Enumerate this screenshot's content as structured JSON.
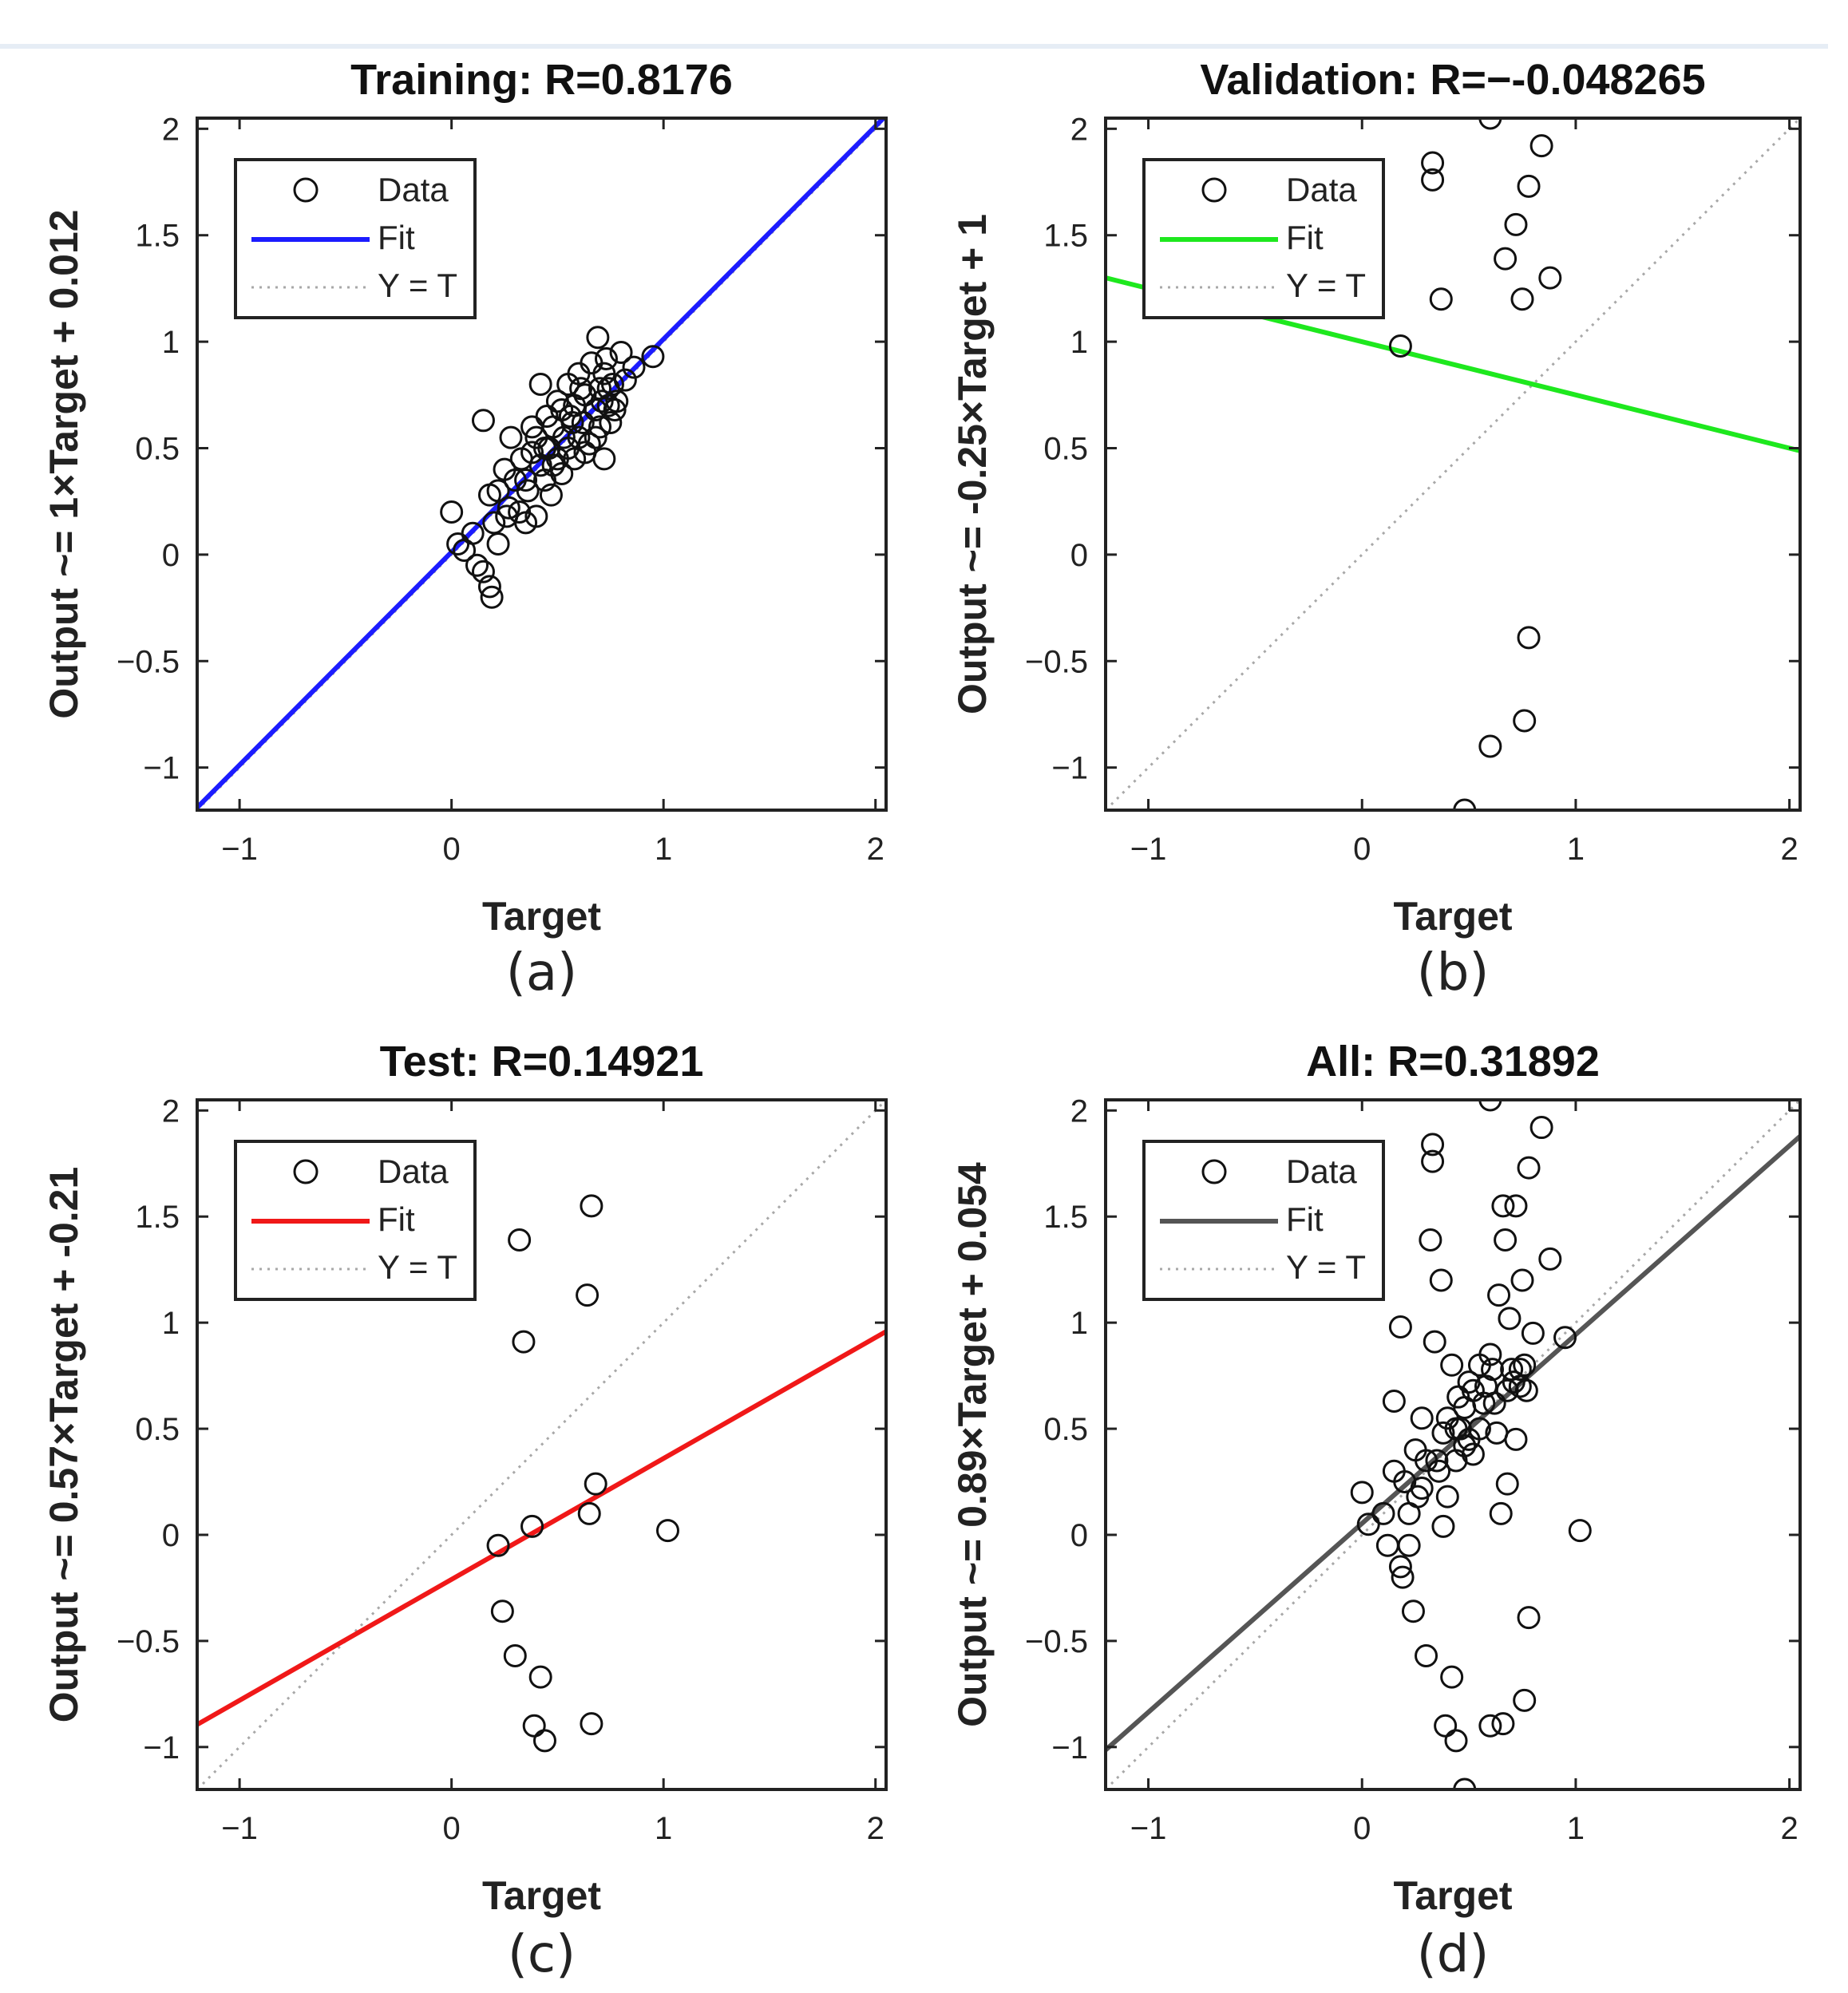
{
  "chart_data": [
    {
      "type": "scatter",
      "title": "Training: R=0.8176",
      "xlabel": "Target",
      "ylabel": "Output ~= 1×Target + 0.012",
      "xlim": [
        -1.2,
        2.05
      ],
      "ylim": [
        -1.2,
        2.05
      ],
      "xticks": [
        -1,
        0,
        1,
        2
      ],
      "yticks": [
        -1,
        -0.5,
        0,
        0.5,
        1,
        1.5,
        2
      ],
      "ytick_labels": [
        "−1",
        "−0.5",
        "0",
        "0.5",
        "1",
        "1.5",
        "2"
      ],
      "xtick_labels": [
        "−1",
        "0",
        "1",
        "2"
      ],
      "fit": {
        "slope": 1,
        "intercept": 0.012,
        "color": "#1c1cff"
      },
      "legend": {
        "data": "Data",
        "fit": "Fit",
        "yt": "Y = T",
        "position": "top-left"
      },
      "caption": "(a)",
      "points": [
        [
          0.0,
          0.2
        ],
        [
          0.03,
          0.05
        ],
        [
          0.06,
          0.02
        ],
        [
          0.1,
          0.1
        ],
        [
          0.12,
          -0.05
        ],
        [
          0.15,
          -0.08
        ],
        [
          0.18,
          -0.15
        ],
        [
          0.19,
          -0.2
        ],
        [
          0.15,
          0.63
        ],
        [
          0.18,
          0.28
        ],
        [
          0.2,
          0.15
        ],
        [
          0.22,
          0.3
        ],
        [
          0.25,
          0.4
        ],
        [
          0.27,
          0.22
        ],
        [
          0.28,
          0.55
        ],
        [
          0.3,
          0.35
        ],
        [
          0.32,
          0.2
        ],
        [
          0.33,
          0.45
        ],
        [
          0.35,
          0.15
        ],
        [
          0.36,
          0.3
        ],
        [
          0.38,
          0.48
        ],
        [
          0.4,
          0.18
        ],
        [
          0.4,
          0.55
        ],
        [
          0.42,
          0.42
        ],
        [
          0.42,
          0.8
        ],
        [
          0.44,
          0.35
        ],
        [
          0.45,
          0.65
        ],
        [
          0.46,
          0.5
        ],
        [
          0.47,
          0.28
        ],
        [
          0.48,
          0.6
        ],
        [
          0.5,
          0.45
        ],
        [
          0.5,
          0.72
        ],
        [
          0.52,
          0.38
        ],
        [
          0.53,
          0.55
        ],
        [
          0.55,
          0.5
        ],
        [
          0.55,
          0.8
        ],
        [
          0.56,
          0.65
        ],
        [
          0.58,
          0.45
        ],
        [
          0.58,
          0.7
        ],
        [
          0.6,
          0.55
        ],
        [
          0.6,
          0.85
        ],
        [
          0.62,
          0.62
        ],
        [
          0.63,
          0.75
        ],
        [
          0.65,
          0.52
        ],
        [
          0.66,
          0.9
        ],
        [
          0.68,
          0.68
        ],
        [
          0.69,
          1.02
        ],
        [
          0.7,
          0.6
        ],
        [
          0.7,
          0.78
        ],
        [
          0.72,
          0.45
        ],
        [
          0.72,
          0.85
        ],
        [
          0.74,
          0.7
        ],
        [
          0.75,
          0.62
        ],
        [
          0.76,
          0.8
        ],
        [
          0.78,
          0.72
        ],
        [
          0.8,
          0.95
        ],
        [
          0.82,
          0.82
        ],
        [
          0.86,
          0.88
        ],
        [
          0.95,
          0.93
        ],
        [
          0.68,
          0.55
        ],
        [
          0.71,
          0.72
        ],
        [
          0.73,
          0.92
        ],
        [
          0.63,
          0.48
        ],
        [
          0.57,
          0.62
        ],
        [
          0.48,
          0.42
        ],
        [
          0.38,
          0.6
        ],
        [
          0.26,
          0.18
        ],
        [
          0.22,
          0.05
        ],
        [
          0.35,
          0.35
        ],
        [
          0.44,
          0.5
        ],
        [
          0.52,
          0.68
        ],
        [
          0.61,
          0.78
        ],
        [
          0.74,
          0.78
        ],
        [
          0.77,
          0.68
        ]
      ]
    },
    {
      "type": "scatter",
      "title": "Validation: R=−-0.048265",
      "xlabel": "Target",
      "ylabel": "Output ~= -0.25×Target + 1",
      "xlim": [
        -1.2,
        2.05
      ],
      "ylim": [
        -1.2,
        2.05
      ],
      "xticks": [
        -1,
        0,
        1,
        2
      ],
      "yticks": [
        -1,
        -0.5,
        0,
        0.5,
        1,
        1.5,
        2
      ],
      "ytick_labels": [
        "−1",
        "−0.5",
        "0",
        "0.5",
        "1",
        "1.5",
        "2"
      ],
      "xtick_labels": [
        "−1",
        "0",
        "1",
        "2"
      ],
      "fit": {
        "slope": -0.25,
        "intercept": 1.0,
        "color": "#1ee81e"
      },
      "legend": {
        "data": "Data",
        "fit": "Fit",
        "yt": "Y = T",
        "position": "top-left"
      },
      "caption": "(b)",
      "points": [
        [
          0.18,
          0.98
        ],
        [
          0.33,
          1.84
        ],
        [
          0.33,
          1.76
        ],
        [
          0.37,
          1.2
        ],
        [
          0.6,
          2.05
        ],
        [
          0.67,
          1.39
        ],
        [
          0.72,
          1.55
        ],
        [
          0.75,
          1.2
        ],
        [
          0.78,
          1.73
        ],
        [
          0.84,
          1.92
        ],
        [
          0.88,
          1.3
        ],
        [
          0.78,
          -0.39
        ],
        [
          0.76,
          -0.78
        ],
        [
          0.6,
          -0.9
        ],
        [
          0.48,
          -1.2
        ]
      ]
    },
    {
      "type": "scatter",
      "title": "Test: R=0.14921",
      "xlabel": "Target",
      "ylabel": "Output ~= 0.57×Target + -0.21",
      "xlim": [
        -1.2,
        2.05
      ],
      "ylim": [
        -1.2,
        2.05
      ],
      "xticks": [
        -1,
        0,
        1,
        2
      ],
      "yticks": [
        -1,
        -0.5,
        0,
        0.5,
        1,
        1.5,
        2
      ],
      "ytick_labels": [
        "−1",
        "−0.5",
        "0",
        "0.5",
        "1",
        "1.5",
        "2"
      ],
      "xtick_labels": [
        "−1",
        "0",
        "1",
        "2"
      ],
      "fit": {
        "slope": 0.57,
        "intercept": -0.21,
        "color": "#f01818"
      },
      "legend": {
        "data": "Data",
        "fit": "Fit",
        "yt": "Y = T",
        "position": "top-left"
      },
      "caption": "(c)",
      "points": [
        [
          0.32,
          1.39
        ],
        [
          0.34,
          0.91
        ],
        [
          0.64,
          1.13
        ],
        [
          0.66,
          1.55
        ],
        [
          0.68,
          0.24
        ],
        [
          0.65,
          0.1
        ],
        [
          0.38,
          0.04
        ],
        [
          0.22,
          -0.05
        ],
        [
          0.24,
          -0.36
        ],
        [
          0.3,
          -0.57
        ],
        [
          0.42,
          -0.67
        ],
        [
          0.39,
          -0.9
        ],
        [
          0.44,
          -0.97
        ],
        [
          0.66,
          -0.89
        ],
        [
          1.02,
          0.02
        ]
      ]
    },
    {
      "type": "scatter",
      "title": "All: R=0.31892",
      "xlabel": "Target",
      "ylabel": "Output ~= 0.89×Target + 0.054",
      "xlim": [
        -1.2,
        2.05
      ],
      "ylim": [
        -1.2,
        2.05
      ],
      "xticks": [
        -1,
        0,
        1,
        2
      ],
      "yticks": [
        -1,
        -0.5,
        0,
        0.5,
        1,
        1.5,
        2
      ],
      "ytick_labels": [
        "−1",
        "−0.5",
        "0",
        "0.5",
        "1",
        "1.5",
        "2"
      ],
      "xtick_labels": [
        "−1",
        "0",
        "1",
        "2"
      ],
      "fit": {
        "slope": 0.89,
        "intercept": 0.054,
        "color": "#555555"
      },
      "legend": {
        "data": "Data",
        "fit": "Fit",
        "yt": "Y = T",
        "position": "top-left"
      },
      "caption": "(d)",
      "points": [
        [
          0.0,
          0.2
        ],
        [
          0.03,
          0.05
        ],
        [
          0.1,
          0.1
        ],
        [
          0.12,
          -0.05
        ],
        [
          0.18,
          -0.15
        ],
        [
          0.19,
          -0.2
        ],
        [
          0.15,
          0.63
        ],
        [
          0.18,
          0.98
        ],
        [
          0.2,
          0.25
        ],
        [
          0.25,
          0.4
        ],
        [
          0.28,
          0.55
        ],
        [
          0.3,
          0.35
        ],
        [
          0.32,
          1.39
        ],
        [
          0.33,
          1.84
        ],
        [
          0.33,
          1.76
        ],
        [
          0.34,
          0.91
        ],
        [
          0.36,
          0.3
        ],
        [
          0.37,
          1.2
        ],
        [
          0.38,
          0.48
        ],
        [
          0.38,
          0.04
        ],
        [
          0.4,
          0.55
        ],
        [
          0.42,
          0.8
        ],
        [
          0.44,
          0.35
        ],
        [
          0.45,
          0.65
        ],
        [
          0.46,
          0.5
        ],
        [
          0.48,
          0.6
        ],
        [
          0.5,
          0.45
        ],
        [
          0.5,
          0.72
        ],
        [
          0.52,
          0.38
        ],
        [
          0.55,
          0.5
        ],
        [
          0.55,
          0.8
        ],
        [
          0.58,
          0.7
        ],
        [
          0.6,
          2.05
        ],
        [
          0.6,
          0.85
        ],
        [
          0.62,
          0.62
        ],
        [
          0.64,
          1.13
        ],
        [
          0.66,
          1.55
        ],
        [
          0.67,
          1.39
        ],
        [
          0.68,
          0.24
        ],
        [
          0.65,
          0.1
        ],
        [
          0.68,
          0.68
        ],
        [
          0.69,
          1.02
        ],
        [
          0.7,
          0.78
        ],
        [
          0.72,
          1.55
        ],
        [
          0.72,
          0.45
        ],
        [
          0.74,
          0.7
        ],
        [
          0.75,
          1.2
        ],
        [
          0.76,
          0.8
        ],
        [
          0.78,
          1.73
        ],
        [
          0.8,
          0.95
        ],
        [
          0.84,
          1.92
        ],
        [
          0.88,
          1.3
        ],
        [
          0.95,
          0.93
        ],
        [
          1.02,
          0.02
        ],
        [
          0.22,
          -0.05
        ],
        [
          0.24,
          -0.36
        ],
        [
          0.3,
          -0.57
        ],
        [
          0.42,
          -0.67
        ],
        [
          0.39,
          -0.9
        ],
        [
          0.44,
          -0.97
        ],
        [
          0.66,
          -0.89
        ],
        [
          0.6,
          -0.9
        ],
        [
          0.78,
          -0.39
        ],
        [
          0.76,
          -0.78
        ],
        [
          0.48,
          -1.2
        ],
        [
          0.15,
          0.3
        ],
        [
          0.22,
          0.1
        ],
        [
          0.26,
          0.18
        ],
        [
          0.35,
          0.35
        ],
        [
          0.44,
          0.5
        ],
        [
          0.52,
          0.68
        ],
        [
          0.61,
          0.78
        ],
        [
          0.74,
          0.78
        ],
        [
          0.77,
          0.68
        ],
        [
          0.71,
          0.72
        ],
        [
          0.63,
          0.48
        ],
        [
          0.57,
          0.62
        ],
        [
          0.48,
          0.42
        ],
        [
          0.4,
          0.18
        ],
        [
          0.28,
          0.22
        ]
      ]
    }
  ]
}
